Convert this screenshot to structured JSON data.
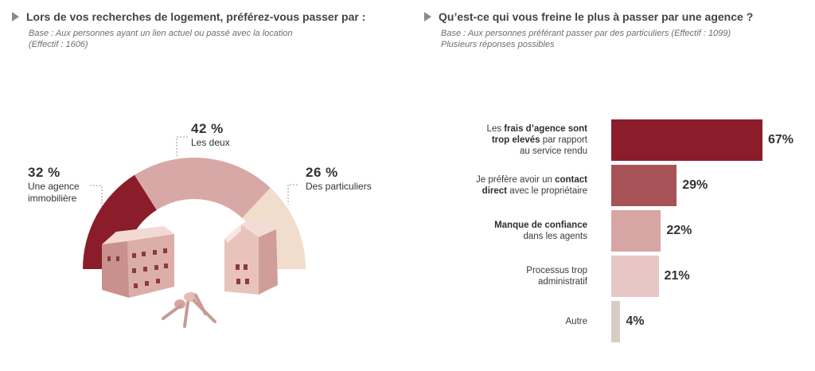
{
  "left": {
    "title": "Lors de vos recherches de logement, préférez-vous passer par :",
    "base_line1": "Base : Aux personnes ayant un lien actuel ou passé avec la location",
    "base_line2": "(Effectif : 1606)"
  },
  "right": {
    "title": "Qu’est-ce qui vous freine le plus à passer par une agence ?",
    "base_line1": "Base : Aux personnes préférant passer par des particuliers (Effectif : 1099)",
    "base_line2": "Plusieurs réponses possibles"
  },
  "chart_data": [
    {
      "type": "pie",
      "variant": "half-donut",
      "title": "Lors de vos recherches de logement, préférez-vous passer par :",
      "categories": [
        "Une agence immobilière",
        "Les deux",
        "Des particuliers"
      ],
      "values": [
        32,
        42,
        26
      ],
      "value_labels": [
        "32 %",
        "42 %",
        "26 %"
      ],
      "label_lines": [
        [
          "Une agence",
          "immobilière"
        ],
        [
          "Les deux"
        ],
        [
          "Des particuliers"
        ]
      ],
      "colors": [
        "#8b1d2b",
        "#d8a8a6",
        "#f1ddcb"
      ]
    },
    {
      "type": "bar",
      "orientation": "horizontal",
      "title": "Qu’est-ce qui vous freine le plus à passer par une agence ?",
      "categories": [
        "Les frais d’agence sont trop elevés par rapport au service rendu",
        "Je préfère avoir un contact direct avec le propriétaire",
        "Manque de confiance dans les agents",
        "Processus trop administratif",
        "Autre"
      ],
      "values": [
        67,
        29,
        22,
        21,
        4
      ],
      "value_labels": [
        "67%",
        "29%",
        "22%",
        "21%",
        "4%"
      ],
      "label_lines": [
        [
          [
            {
              "t": "Les ",
              "b": false
            },
            {
              "t": "frais d’agence sont",
              "b": true
            }
          ],
          [
            {
              "t": "trop elevés",
              "b": true
            },
            {
              "t": " par rapport",
              "b": false
            }
          ],
          [
            {
              "t": "au service rendu",
              "b": false
            }
          ]
        ],
        [
          [
            {
              "t": "Je préfère avoir un ",
              "b": false
            },
            {
              "t": "contact",
              "b": true
            }
          ],
          [
            {
              "t": "direct",
              "b": true
            },
            {
              "t": " avec le propriétaire",
              "b": false
            }
          ]
        ],
        [
          [
            {
              "t": "Manque de confiance",
              "b": true
            }
          ],
          [
            {
              "t": "dans les agents",
              "b": false
            }
          ]
        ],
        [
          [
            {
              "t": "Processus trop",
              "b": false
            }
          ],
          [
            {
              "t": "administratif",
              "b": false
            }
          ]
        ],
        [
          [
            {
              "t": "Autre",
              "b": false
            }
          ]
        ]
      ],
      "colors": [
        "#8b1d2b",
        "#a65257",
        "#d7a6a4",
        "#e8c6c4",
        "#d8cdc3"
      ],
      "xlim": [
        0,
        100
      ]
    }
  ]
}
